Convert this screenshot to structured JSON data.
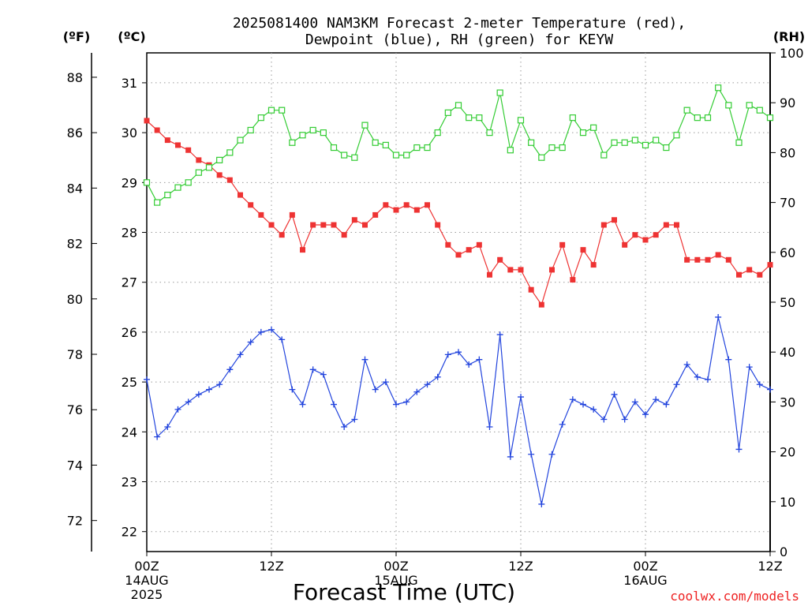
{
  "chart_data": {
    "type": "line",
    "title_line1": "2025081400 NAM3KM Forecast 2-meter Temperature (red),",
    "title_line2": "Dewpoint (blue), RH (green) for KEYW",
    "xlabel": "Forecast Time (UTC)",
    "ylabel_left_f": "(ºF)",
    "ylabel_left_c": "(ºC)",
    "ylabel_right": "(RH)",
    "credit": "coolwx.com/models",
    "xlim": [
      0,
      60
    ],
    "ylim_c": [
      21.6,
      31.6
    ],
    "ylim_rh": [
      0,
      100
    ],
    "x_ticks": [
      {
        "x": 0,
        "label": "00Z",
        "sub1": "14AUG",
        "sub2": "2025"
      },
      {
        "x": 12,
        "label": "12Z",
        "sub1": "",
        "sub2": ""
      },
      {
        "x": 24,
        "label": "00Z",
        "sub1": "15AUG",
        "sub2": ""
      },
      {
        "x": 36,
        "label": "12Z",
        "sub1": "",
        "sub2": ""
      },
      {
        "x": 48,
        "label": "00Z",
        "sub1": "16AUG",
        "sub2": ""
      },
      {
        "x": 60,
        "label": "12Z",
        "sub1": "",
        "sub2": ""
      }
    ],
    "y_ticks_c": [
      "22",
      "23",
      "24",
      "25",
      "26",
      "27",
      "28",
      "29",
      "30",
      "31"
    ],
    "y_ticks_f": [
      "72",
      "74",
      "76",
      "78",
      "80",
      "82",
      "84",
      "86",
      "88"
    ],
    "y_ticks_rh": [
      "0",
      "10",
      "20",
      "30",
      "40",
      "50",
      "60",
      "70",
      "80",
      "90",
      "100"
    ],
    "grid": true,
    "series": [
      {
        "name": "Temperature",
        "color": "#ee3333",
        "marker": "filled-square",
        "values": [
          30.24,
          30.05,
          29.85,
          29.75,
          29.65,
          29.45,
          29.35,
          29.15,
          29.05,
          28.75,
          28.55,
          28.35,
          28.15,
          27.95,
          28.35,
          27.65,
          28.15,
          28.15,
          28.15,
          27.95,
          28.25,
          28.15,
          28.35,
          28.55,
          28.45,
          28.55,
          28.45,
          28.55,
          28.15,
          27.75,
          27.55,
          27.65,
          27.75,
          27.15,
          27.45,
          27.25,
          27.25,
          26.85,
          26.55,
          27.25,
          27.75,
          27.05,
          27.65,
          27.35,
          28.15,
          28.25,
          27.75,
          27.95,
          27.85,
          27.95,
          28.15,
          28.15,
          27.45,
          27.45,
          27.45,
          27.55,
          27.45,
          27.15,
          27.25,
          27.15,
          27.35
        ]
      },
      {
        "name": "Dewpoint",
        "color": "#2244dd",
        "marker": "plus",
        "values": [
          25.05,
          23.9,
          24.1,
          24.45,
          24.6,
          24.75,
          24.85,
          24.95,
          25.25,
          25.55,
          25.8,
          26.0,
          26.05,
          25.85,
          24.85,
          24.55,
          25.25,
          25.15,
          24.55,
          24.1,
          24.25,
          25.45,
          24.85,
          25.0,
          24.55,
          24.6,
          24.8,
          24.95,
          25.1,
          25.55,
          25.6,
          25.35,
          25.45,
          24.1,
          25.95,
          23.5,
          24.7,
          23.55,
          22.55,
          23.55,
          24.15,
          24.65,
          24.55,
          24.45,
          24.25,
          24.75,
          24.25,
          24.6,
          24.35,
          24.65,
          24.55,
          24.95,
          25.35,
          25.1,
          25.05,
          26.3,
          25.45,
          23.65,
          25.3,
          24.95,
          24.85
        ]
      },
      {
        "name": "RH",
        "color": "#33cc33",
        "marker": "open-square",
        "values": [
          74,
          70,
          71.5,
          73,
          74,
          76,
          77,
          78.5,
          80,
          82.5,
          84.5,
          87,
          88.5,
          88.5,
          82,
          83.5,
          84.5,
          84,
          81,
          79.5,
          79,
          85.5,
          82,
          81.5,
          79.5,
          79.5,
          81,
          81,
          84,
          88,
          89.5,
          87,
          87,
          84,
          92,
          80.5,
          86.5,
          82,
          79,
          81,
          81,
          87,
          84,
          85,
          79.5,
          82,
          82,
          82.5,
          81.5,
          82.5,
          81,
          83.5,
          88.5,
          87,
          87,
          93,
          89.5,
          82,
          89.5,
          88.5,
          87
        ]
      }
    ]
  }
}
